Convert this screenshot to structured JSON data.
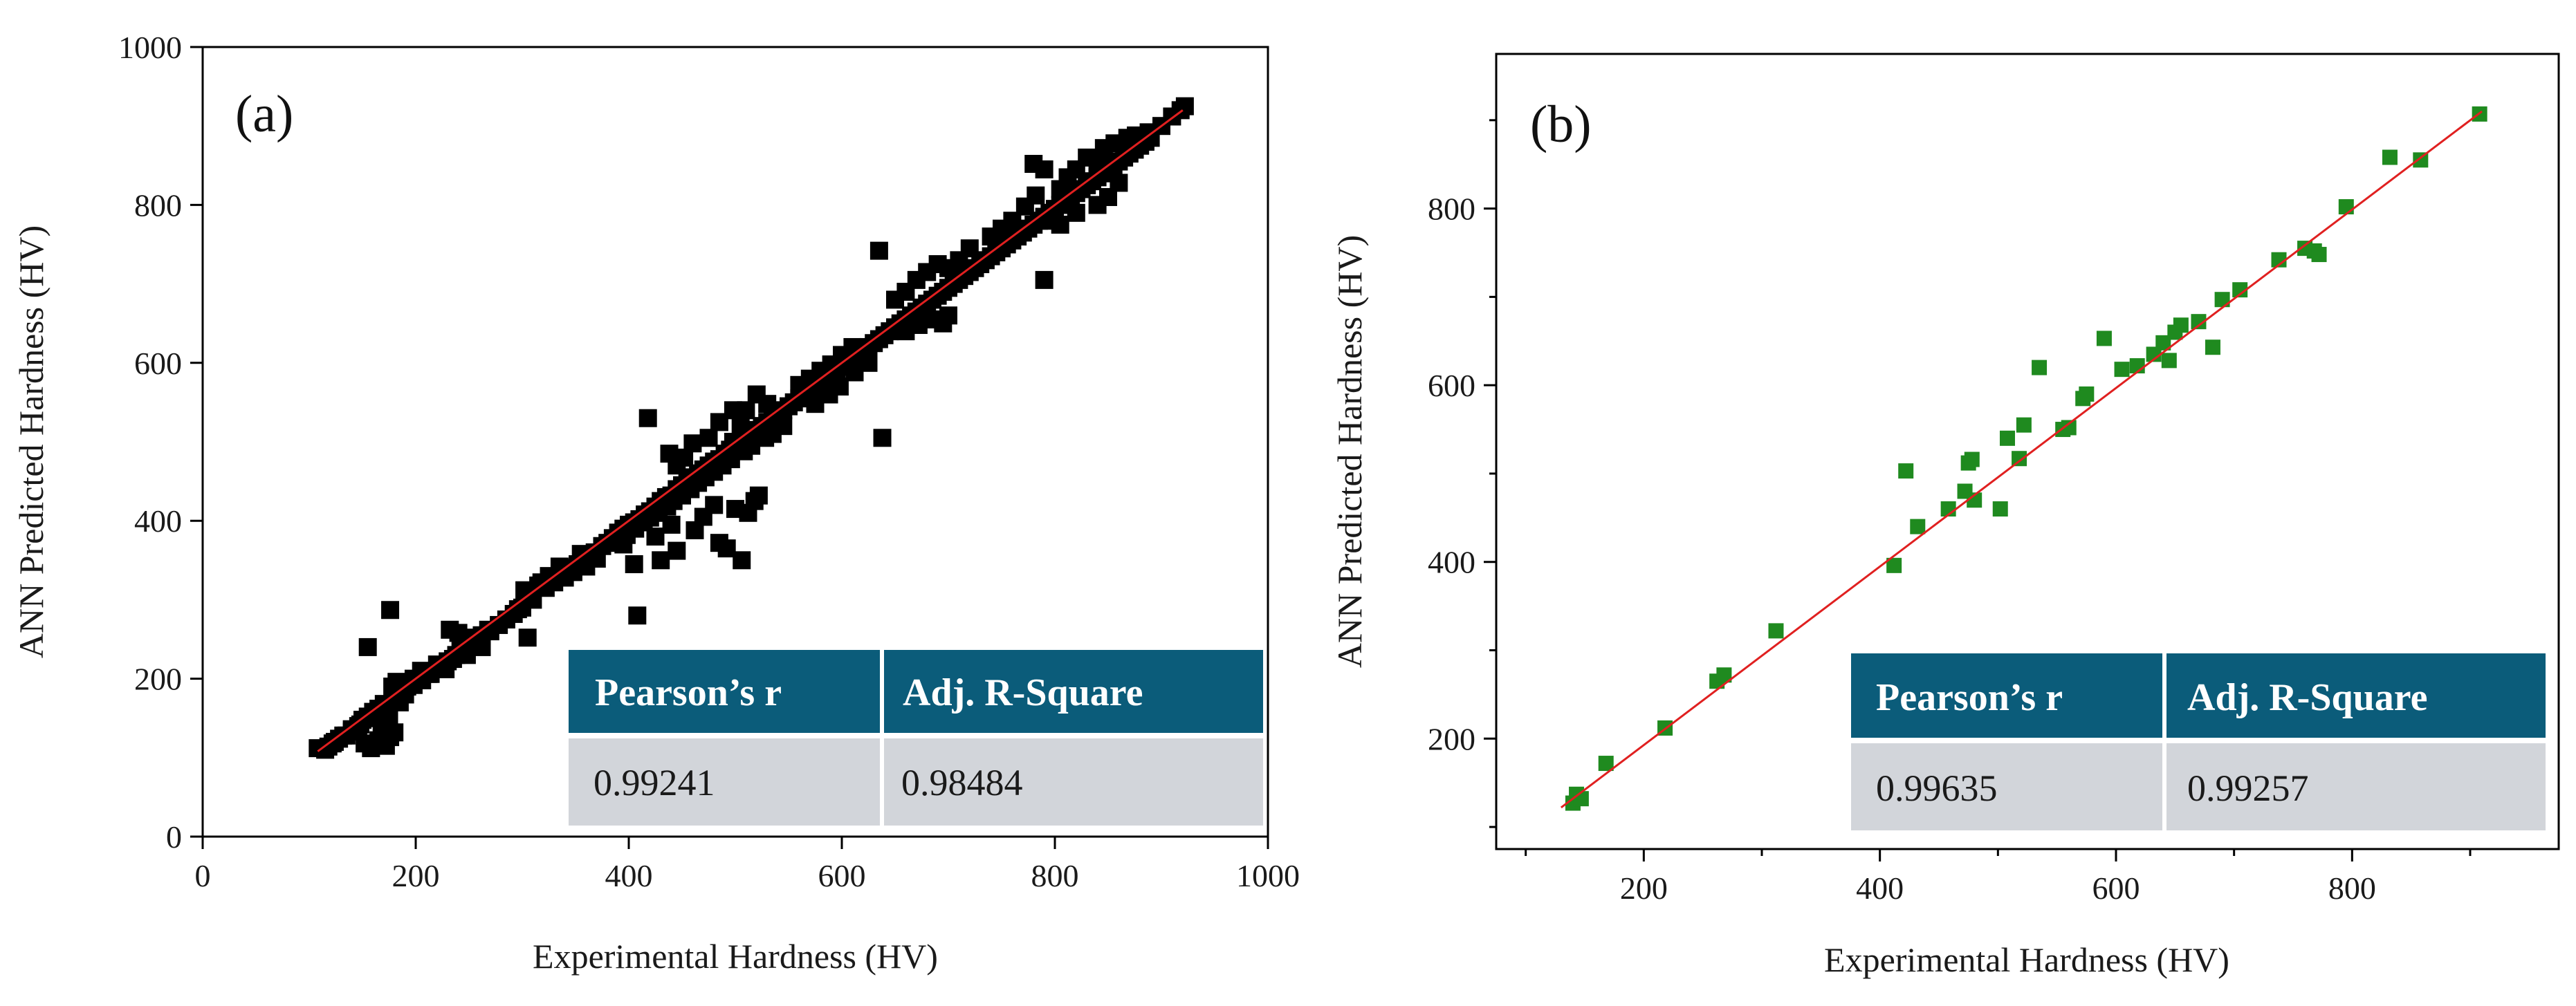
{
  "chart_data": [
    {
      "type": "scatter",
      "panel_label": "(a)",
      "xlabel": "Experimental Hardness (HV)",
      "ylabel": "ANN Predicted Hardness (HV)",
      "xlim": [
        0,
        1000
      ],
      "ylim": [
        0,
        1000
      ],
      "xticks": [
        0,
        200,
        400,
        600,
        800,
        1000
      ],
      "yticks": [
        0,
        200,
        400,
        600,
        800,
        1000
      ],
      "xtick_labels": [
        "0",
        "200",
        "400",
        "600",
        "800",
        "1000"
      ],
      "ytick_labels": [
        "0",
        "200",
        "400",
        "600",
        "800",
        "1000"
      ],
      "grid": false,
      "marker_color": "#000000",
      "fit_line_color": "#e02020",
      "fit_line": [
        [
          108,
          108
        ],
        [
          920,
          920
        ]
      ],
      "stats_table": {
        "headers": [
          "Pearson’s r",
          "Adj. R-Square"
        ],
        "values": [
          "0.99241",
          "0.98484"
        ]
      },
      "points": [
        [
          108,
          112
        ],
        [
          115,
          110
        ],
        [
          122,
          118
        ],
        [
          128,
          124
        ],
        [
          135,
          128
        ],
        [
          140,
          133
        ],
        [
          146,
          140
        ],
        [
          150,
          148
        ],
        [
          155,
          152
        ],
        [
          160,
          158
        ],
        [
          165,
          162
        ],
        [
          170,
          168
        ],
        [
          152,
          118
        ],
        [
          158,
          112
        ],
        [
          165,
          122
        ],
        [
          172,
          115
        ],
        [
          176,
          126
        ],
        [
          180,
          132
        ],
        [
          168,
          140
        ],
        [
          175,
          150
        ],
        [
          185,
          170
        ],
        [
          190,
          180
        ],
        [
          178,
          190
        ],
        [
          182,
          196
        ],
        [
          155,
          240
        ],
        [
          176,
          287
        ],
        [
          192,
          190
        ],
        [
          198,
          200
        ],
        [
          205,
          210
        ],
        [
          212,
          206
        ],
        [
          220,
          218
        ],
        [
          228,
          212
        ],
        [
          235,
          225
        ],
        [
          242,
          238
        ],
        [
          248,
          230
        ],
        [
          252,
          245
        ],
        [
          258,
          250
        ],
        [
          262,
          240
        ],
        [
          270,
          260
        ],
        [
          278,
          268
        ],
        [
          232,
          262
        ],
        [
          240,
          258
        ],
        [
          250,
          252
        ],
        [
          285,
          275
        ],
        [
          292,
          282
        ],
        [
          300,
          290
        ],
        [
          305,
          252
        ],
        [
          310,
          300
        ],
        [
          315,
          318
        ],
        [
          322,
          315
        ],
        [
          330,
          322
        ],
        [
          338,
          330
        ],
        [
          345,
          340
        ],
        [
          352,
          345
        ],
        [
          360,
          352
        ],
        [
          368,
          360
        ],
        [
          375,
          368
        ],
        [
          380,
          372
        ],
        [
          385,
          378
        ],
        [
          390,
          385
        ],
        [
          395,
          390
        ],
        [
          400,
          395
        ],
        [
          405,
          398
        ],
        [
          410,
          402
        ],
        [
          415,
          408
        ],
        [
          420,
          412
        ],
        [
          425,
          418
        ],
        [
          430,
          425
        ],
        [
          435,
          430
        ],
        [
          440,
          432
        ],
        [
          445,
          440
        ],
        [
          450,
          445
        ],
        [
          455,
          450
        ],
        [
          460,
          455
        ],
        [
          465,
          460
        ],
        [
          470,
          465
        ],
        [
          475,
          470
        ],
        [
          480,
          475
        ],
        [
          485,
          478
        ],
        [
          490,
          485
        ],
        [
          495,
          490
        ],
        [
          500,
          495
        ],
        [
          505,
          500
        ],
        [
          510,
          505
        ],
        [
          515,
          510
        ],
        [
          520,
          515
        ],
        [
          525,
          520
        ],
        [
          530,
          525
        ],
        [
          535,
          530
        ],
        [
          540,
          535
        ],
        [
          545,
          540
        ],
        [
          550,
          545
        ],
        [
          555,
          550
        ],
        [
          560,
          555
        ],
        [
          565,
          560
        ],
        [
          570,
          565
        ],
        [
          575,
          570
        ],
        [
          580,
          575
        ],
        [
          585,
          580
        ],
        [
          590,
          585
        ],
        [
          595,
          590
        ],
        [
          600,
          595
        ],
        [
          605,
          600
        ],
        [
          610,
          605
        ],
        [
          615,
          610
        ],
        [
          620,
          615
        ],
        [
          625,
          620
        ],
        [
          630,
          625
        ],
        [
          635,
          630
        ],
        [
          640,
          635
        ],
        [
          645,
          640
        ],
        [
          650,
          645
        ],
        [
          655,
          650
        ],
        [
          660,
          655
        ],
        [
          665,
          660
        ],
        [
          670,
          665
        ],
        [
          675,
          670
        ],
        [
          680,
          675
        ],
        [
          685,
          680
        ],
        [
          690,
          685
        ],
        [
          695,
          690
        ],
        [
          700,
          695
        ],
        [
          705,
          700
        ],
        [
          710,
          705
        ],
        [
          715,
          710
        ],
        [
          720,
          715
        ],
        [
          725,
          720
        ],
        [
          730,
          725
        ],
        [
          735,
          730
        ],
        [
          740,
          735
        ],
        [
          745,
          740
        ],
        [
          750,
          745
        ],
        [
          755,
          750
        ],
        [
          760,
          755
        ],
        [
          765,
          760
        ],
        [
          770,
          765
        ],
        [
          775,
          770
        ],
        [
          780,
          775
        ],
        [
          785,
          780
        ],
        [
          790,
          785
        ],
        [
          795,
          790
        ],
        [
          800,
          795
        ],
        [
          805,
          800
        ],
        [
          810,
          805
        ],
        [
          815,
          810
        ],
        [
          820,
          815
        ],
        [
          825,
          820
        ],
        [
          830,
          825
        ],
        [
          835,
          830
        ],
        [
          840,
          835
        ],
        [
          845,
          840
        ],
        [
          850,
          845
        ],
        [
          855,
          850
        ],
        [
          860,
          855
        ],
        [
          865,
          860
        ],
        [
          870,
          865
        ],
        [
          875,
          870
        ],
        [
          880,
          875
        ],
        [
          885,
          880
        ],
        [
          890,
          885
        ],
        [
          900,
          900
        ],
        [
          910,
          912
        ],
        [
          918,
          920
        ],
        [
          922,
          925
        ],
        [
          408,
          280
        ],
        [
          418,
          530
        ],
        [
          395,
          370
        ],
        [
          405,
          345
        ],
        [
          425,
          380
        ],
        [
          440,
          395
        ],
        [
          430,
          350
        ],
        [
          445,
          362
        ],
        [
          462,
          388
        ],
        [
          470,
          405
        ],
        [
          480,
          420
        ],
        [
          485,
          372
        ],
        [
          492,
          365
        ],
        [
          500,
          415
        ],
        [
          506,
          350
        ],
        [
          512,
          410
        ],
        [
          518,
          425
        ],
        [
          522,
          432
        ],
        [
          498,
          500
        ],
        [
          505,
          520
        ],
        [
          510,
          540
        ],
        [
          520,
          560
        ],
        [
          530,
          548
        ],
        [
          498,
          540
        ],
        [
          485,
          525
        ],
        [
          475,
          505
        ],
        [
          460,
          498
        ],
        [
          452,
          480
        ],
        [
          445,
          470
        ],
        [
          438,
          485
        ],
        [
          560,
          572
        ],
        [
          570,
          580
        ],
        [
          580,
          590
        ],
        [
          590,
          598
        ],
        [
          600,
          610
        ],
        [
          610,
          620
        ],
        [
          635,
          742
        ],
        [
          638,
          505
        ],
        [
          650,
          680
        ],
        [
          660,
          690
        ],
        [
          670,
          705
        ],
        [
          680,
          715
        ],
        [
          690,
          725
        ],
        [
          700,
          720
        ],
        [
          710,
          730
        ],
        [
          660,
          640
        ],
        [
          672,
          648
        ],
        [
          685,
          655
        ],
        [
          695,
          650
        ],
        [
          700,
          660
        ],
        [
          720,
          745
        ],
        [
          740,
          760
        ],
        [
          750,
          770
        ],
        [
          760,
          780
        ],
        [
          772,
          798
        ],
        [
          782,
          812
        ],
        [
          790,
          705
        ],
        [
          795,
          780
        ],
        [
          805,
          820
        ],
        [
          812,
          835
        ],
        [
          780,
          852
        ],
        [
          790,
          845
        ],
        [
          820,
          845
        ],
        [
          830,
          860
        ],
        [
          840,
          850
        ],
        [
          846,
          872
        ],
        [
          856,
          878
        ],
        [
          868,
          885
        ],
        [
          876,
          888
        ],
        [
          888,
          892
        ],
        [
          840,
          800
        ],
        [
          850,
          810
        ],
        [
          860,
          828
        ],
        [
          820,
          790
        ],
        [
          805,
          775
        ],
        [
          625,
          600
        ],
        [
          612,
          588
        ],
        [
          598,
          570
        ],
        [
          588,
          560
        ],
        [
          575,
          548
        ],
        [
          545,
          520
        ],
        [
          535,
          510
        ],
        [
          528,
          505
        ],
        [
          515,
          495
        ],
        [
          508,
          488
        ],
        [
          496,
          478
        ],
        [
          488,
          470
        ],
        [
          480,
          462
        ],
        [
          472,
          455
        ],
        [
          465,
          448
        ],
        [
          458,
          440
        ],
        [
          450,
          432
        ],
        [
          442,
          425
        ],
        [
          436,
          418
        ],
        [
          428,
          410
        ],
        [
          420,
          404
        ],
        [
          414,
          398
        ],
        [
          406,
          390
        ],
        [
          398,
          382
        ],
        [
          392,
          376
        ],
        [
          360,
          342
        ],
        [
          370,
          352
        ],
        [
          355,
          358
        ],
        [
          348,
          335
        ],
        [
          340,
          328
        ],
        [
          335,
          342
        ],
        [
          325,
          330
        ],
        [
          318,
          322
        ],
        [
          302,
          312
        ],
        [
          296,
          288
        ],
        [
          268,
          262
        ],
        [
          262,
          255
        ],
        [
          255,
          248
        ],
        [
          246,
          238
        ],
        [
          238,
          230
        ],
        [
          230,
          222
        ],
        [
          222,
          214
        ],
        [
          214,
          206
        ],
        [
          206,
          198
        ],
        [
          198,
          192
        ],
        [
          188,
          182
        ],
        [
          180,
          175
        ],
        [
          172,
          166
        ],
        [
          164,
          158
        ],
        [
          156,
          150
        ],
        [
          148,
          142
        ],
        [
          140,
          136
        ],
        [
          132,
          128
        ],
        [
          124,
          120
        ],
        [
          118,
          114
        ]
      ]
    },
    {
      "type": "scatter",
      "panel_label": "(b)",
      "xlabel": "Experimental Hardness (HV)",
      "ylabel": "ANN Predicted Hardness (HV)",
      "xlim": [
        75,
        975
      ],
      "ylim": [
        75,
        975
      ],
      "xticks": [
        200,
        400,
        600,
        800
      ],
      "yticks": [
        200,
        400,
        600,
        800
      ],
      "xtick_labels": [
        "200",
        "400",
        "600",
        "800"
      ],
      "ytick_labels": [
        "200",
        "400",
        "600",
        "800"
      ],
      "minor_ticks": [
        100,
        300,
        500,
        700,
        900
      ],
      "grid": false,
      "marker_color": "#1f8a1f",
      "fit_line_color": "#e02020",
      "fit_line": [
        [
          130,
          122
        ],
        [
          910,
          910
        ]
      ],
      "stats_table": {
        "headers": [
          "Pearson’s r",
          "Adj. R-Square"
        ],
        "values": [
          "0.99635",
          "0.99257"
        ]
      },
      "points": [
        [
          140,
          127
        ],
        [
          143,
          137
        ],
        [
          147,
          132
        ],
        [
          168,
          172
        ],
        [
          218,
          212
        ],
        [
          262,
          265
        ],
        [
          268,
          272
        ],
        [
          312,
          322
        ],
        [
          412,
          396
        ],
        [
          422,
          503
        ],
        [
          432,
          440
        ],
        [
          458,
          460
        ],
        [
          472,
          480
        ],
        [
          475,
          512
        ],
        [
          478,
          516
        ],
        [
          480,
          470
        ],
        [
          502,
          460
        ],
        [
          508,
          540
        ],
        [
          518,
          517
        ],
        [
          522,
          555
        ],
        [
          535,
          620
        ],
        [
          555,
          550
        ],
        [
          560,
          552
        ],
        [
          572,
          585
        ],
        [
          575,
          590
        ],
        [
          590,
          653
        ],
        [
          605,
          618
        ],
        [
          618,
          622
        ],
        [
          632,
          635
        ],
        [
          640,
          648
        ],
        [
          645,
          628
        ],
        [
          650,
          660
        ],
        [
          655,
          668
        ],
        [
          670,
          672
        ],
        [
          682,
          643
        ],
        [
          690,
          697
        ],
        [
          705,
          708
        ],
        [
          738,
          742
        ],
        [
          760,
          755
        ],
        [
          768,
          752
        ],
        [
          772,
          748
        ],
        [
          795,
          802
        ],
        [
          832,
          858
        ],
        [
          858,
          855
        ],
        [
          908,
          907
        ]
      ]
    }
  ]
}
